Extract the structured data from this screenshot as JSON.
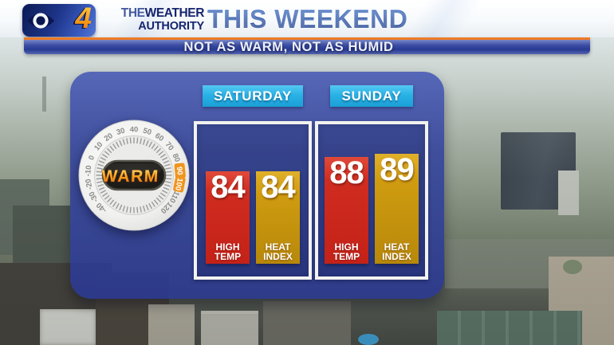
{
  "header": {
    "station": {
      "channel": "4",
      "brand_the": "THE",
      "brand_weather": "WEATHER",
      "brand_authority": "AUTHORITY"
    },
    "title": "THIS WEEKEND",
    "subtitle": "NOT AS WARM, NOT AS HUMID"
  },
  "dial": {
    "label": "WARM",
    "tick_values": [
      -40,
      -30,
      -20,
      -10,
      0,
      10,
      20,
      30,
      40,
      50,
      60,
      70,
      80,
      90,
      100,
      110,
      120
    ],
    "highlight_values": [
      90,
      100
    ],
    "highlight_color": "#f0941d"
  },
  "forecast": {
    "columns": [
      {
        "day": "SATURDAY",
        "bars": [
          {
            "value": 84,
            "label": "HIGH TEMP",
            "kind": "high_temp"
          },
          {
            "value": 84,
            "label": "HEAT INDEX",
            "kind": "heat_index"
          }
        ]
      },
      {
        "day": "SUNDAY",
        "bars": [
          {
            "value": 88,
            "label": "HIGH TEMP",
            "kind": "high_temp"
          },
          {
            "value": 89,
            "label": "HEAT INDEX",
            "kind": "heat_index"
          }
        ]
      }
    ]
  },
  "chart_data": {
    "type": "bar",
    "title": "THIS WEEKEND",
    "subtitle": "NOT AS WARM, NOT AS HUMID",
    "categories": [
      "SATURDAY",
      "SUNDAY"
    ],
    "series": [
      {
        "name": "HIGH TEMP",
        "values": [
          84,
          88
        ],
        "color": "#d02c20"
      },
      {
        "name": "HEAT INDEX",
        "values": [
          84,
          89
        ],
        "color": "#cf9c10"
      }
    ],
    "gauge_label": "WARM",
    "gauge_range": [
      -40,
      120
    ],
    "gauge_highlight": [
      90,
      100
    ],
    "unit": "°F"
  },
  "colors": {
    "panel_blue": "#35459c",
    "banner_orange": "#ee7a26",
    "day_tag_cyan": "#29b2e6",
    "bar_red": "#d02c20",
    "bar_gold": "#cf9c10"
  }
}
